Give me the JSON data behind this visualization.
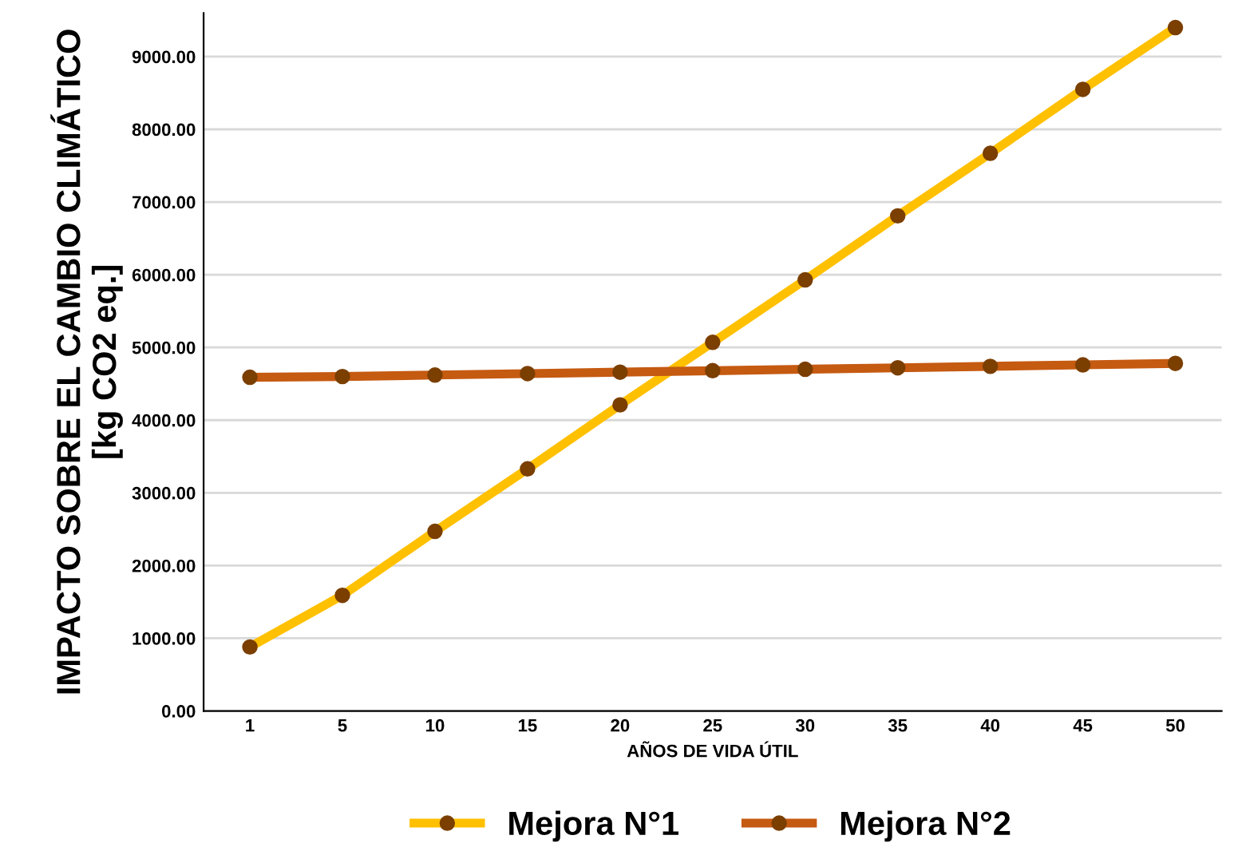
{
  "chart_data": {
    "type": "line",
    "xlabel": "AÑOS DE VIDA ÚTIL",
    "ylabel": "IMPACTO SOBRE EL CAMBIO CLIMÁTICO\n[kg CO2 eq.]",
    "categories": [
      "1",
      "5",
      "10",
      "15",
      "20",
      "25",
      "30",
      "35",
      "40",
      "45",
      "50"
    ],
    "series": [
      {
        "name": "Mejora N°1",
        "color": "#ffc000",
        "values": [
          880,
          1590,
          2470,
          3330,
          4210,
          5070,
          5930,
          6810,
          7670,
          8550,
          9400
        ]
      },
      {
        "name": "Mejora N°2",
        "color": "#c55a11",
        "values": [
          4590,
          4600,
          4620,
          4640,
          4660,
          4680,
          4700,
          4720,
          4740,
          4760,
          4780
        ]
      }
    ],
    "ylim": [
      0,
      9600
    ],
    "yticks": [
      {
        "value": 0,
        "label": "0.00"
      },
      {
        "value": 1000,
        "label": "1000.00"
      },
      {
        "value": 2000,
        "label": "2000.00"
      },
      {
        "value": 3000,
        "label": "3000.00"
      },
      {
        "value": 4000,
        "label": "4000.00"
      },
      {
        "value": 5000,
        "label": "5000.00"
      },
      {
        "value": 6000,
        "label": "6000.00"
      },
      {
        "value": 7000,
        "label": "7000.00"
      },
      {
        "value": 8000,
        "label": "8000.00"
      },
      {
        "value": 9000,
        "label": "9000.00"
      }
    ],
    "grid": "y",
    "legend": "bottom",
    "marker": "circle",
    "line_style": "solid"
  }
}
